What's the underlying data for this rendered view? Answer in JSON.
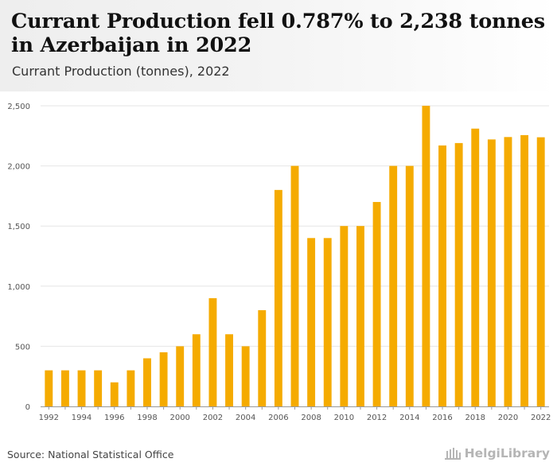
{
  "title": "Currant Production fell 0.787% to 2,238 tonnes in Azerbaijan in 2022",
  "subtitle": "Currant Production (tonnes), 2022",
  "source": "Source: National Statistical Office",
  "logo_text": "HelgiLibrary",
  "colors": {
    "bar": "#f5ab00",
    "grid": "#e6e6e6",
    "axis": "#999999",
    "header_bg": "#eeeeee"
  },
  "chart_data": {
    "type": "bar",
    "title": "Currant Production fell 0.787% to 2,238 tonnes in Azerbaijan in 2022",
    "subtitle": "Currant Production (tonnes), 2022",
    "xlabel": "",
    "ylabel": "",
    "ylim": [
      0,
      2500
    ],
    "yticks": [
      0,
      500,
      1000,
      1500,
      2000,
      2500
    ],
    "ytick_labels": [
      "0",
      "500",
      "1,000",
      "1,500",
      "2,000",
      "2,500"
    ],
    "xtick_labels": [
      "1992",
      "1994",
      "1996",
      "1998",
      "2000",
      "2002",
      "2004",
      "2006",
      "2008",
      "2010",
      "2012",
      "2014",
      "2016",
      "2018",
      "2020",
      "2022"
    ],
    "grid": true,
    "legend": "none",
    "categories": [
      "1992",
      "1993",
      "1994",
      "1995",
      "1996",
      "1997",
      "1998",
      "1999",
      "2000",
      "2001",
      "2002",
      "2003",
      "2004",
      "2005",
      "2006",
      "2007",
      "2008",
      "2009",
      "2010",
      "2011",
      "2012",
      "2013",
      "2014",
      "2015",
      "2016",
      "2017",
      "2018",
      "2019",
      "2020",
      "2021",
      "2022"
    ],
    "values": [
      300,
      300,
      300,
      300,
      200,
      300,
      400,
      450,
      500,
      600,
      900,
      600,
      500,
      800,
      1800,
      2000,
      1400,
      1400,
      1500,
      1500,
      1700,
      2000,
      2000,
      2500,
      2170,
      2190,
      2310,
      2220,
      2240,
      2256,
      2238
    ]
  }
}
